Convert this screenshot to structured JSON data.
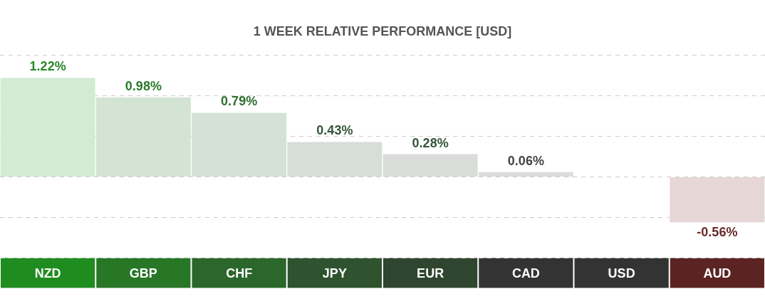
{
  "chart_data": {
    "type": "bar",
    "title": "1 WEEK RELATIVE PERFORMANCE [USD]",
    "categories": [
      "NZD",
      "GBP",
      "CHF",
      "JPY",
      "EUR",
      "CAD",
      "USD",
      "AUD"
    ],
    "values": [
      1.22,
      0.98,
      0.79,
      0.43,
      0.28,
      0.06,
      null,
      -0.56
    ],
    "value_labels": [
      "1.22%",
      "0.98%",
      "0.79%",
      "0.43%",
      "0.28%",
      "0.06%",
      null,
      "-0.56%"
    ],
    "colors": [
      "#d3ead3",
      "#d4e4d4",
      "#d5e1d5",
      "#d7ddd7",
      "#d9dcd9",
      "#dcdcdc",
      "#dcdcdc",
      "#e6d6d6"
    ],
    "ylim": [
      -1,
      1.5
    ],
    "yticks": [
      -1,
      -0.5,
      0,
      0.5,
      1,
      1.5
    ],
    "grid": true,
    "data_labels": true,
    "tick_labels": "x"
  }
}
